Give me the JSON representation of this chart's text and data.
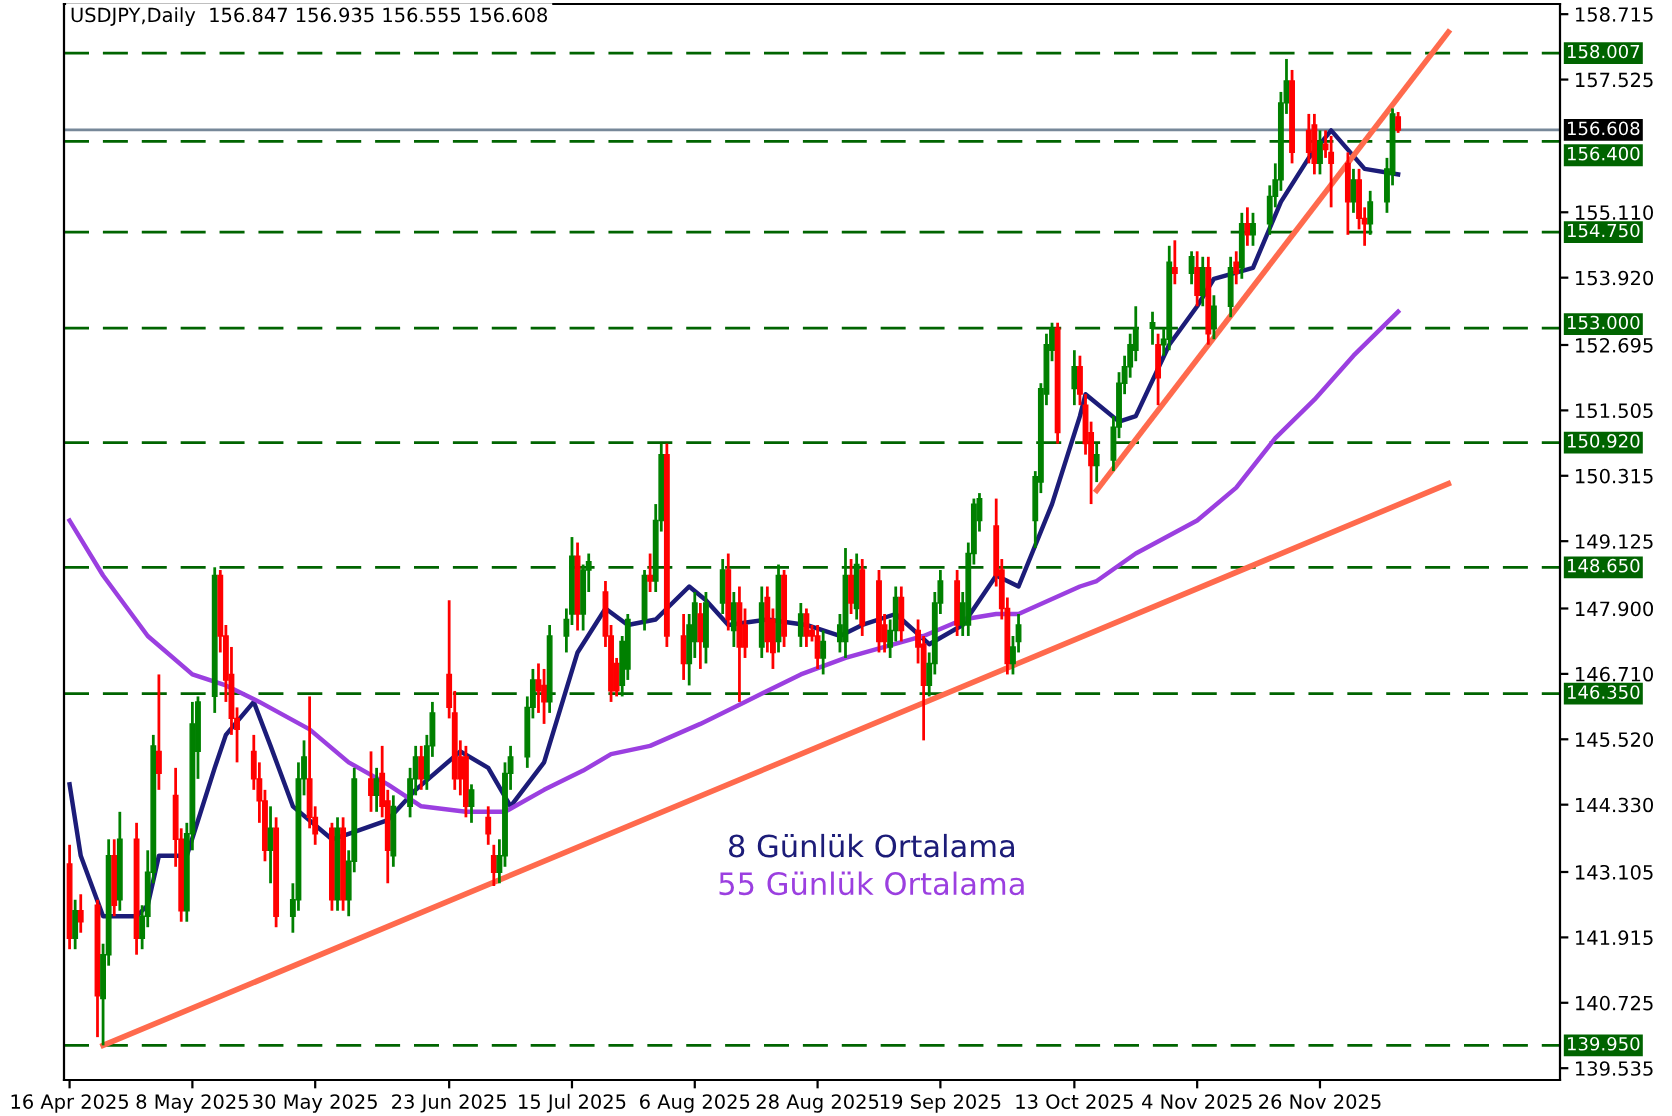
{
  "chart_data": {
    "type": "candlestick",
    "title": "USDJPY,Daily  156.847 156.935 156.555 156.608",
    "x": [
      "2025-04-16",
      "2025-04-17",
      "2025-04-18",
      "2025-04-21",
      "2025-04-22",
      "2025-04-23",
      "2025-04-24",
      "2025-04-25",
      "2025-04-28",
      "2025-04-29",
      "2025-04-30",
      "2025-05-01",
      "2025-05-02",
      "2025-05-05",
      "2025-05-06",
      "2025-05-07",
      "2025-05-08",
      "2025-05-09",
      "2025-05-12",
      "2025-05-13",
      "2025-05-14",
      "2025-05-15",
      "2025-05-16",
      "2025-05-19",
      "2025-05-20",
      "2025-05-21",
      "2025-05-22",
      "2025-05-23",
      "2025-05-26",
      "2025-05-27",
      "2025-05-28",
      "2025-05-29",
      "2025-05-30",
      "2025-06-02",
      "2025-06-03",
      "2025-06-04",
      "2025-06-05",
      "2025-06-06",
      "2025-06-09",
      "2025-06-10",
      "2025-06-11",
      "2025-06-12",
      "2025-06-13",
      "2025-06-16",
      "2025-06-17",
      "2025-06-18",
      "2025-06-19",
      "2025-06-20",
      "2025-06-23",
      "2025-06-24",
      "2025-06-25",
      "2025-06-26",
      "2025-06-27",
      "2025-06-30",
      "2025-07-01",
      "2025-07-02",
      "2025-07-03",
      "2025-07-04",
      "2025-07-07",
      "2025-07-08",
      "2025-07-09",
      "2025-07-10",
      "2025-07-11",
      "2025-07-14",
      "2025-07-15",
      "2025-07-16",
      "2025-07-17",
      "2025-07-18",
      "2025-07-21",
      "2025-07-22",
      "2025-07-23",
      "2025-07-24",
      "2025-07-25",
      "2025-07-28",
      "2025-07-29",
      "2025-07-30",
      "2025-07-31",
      "2025-08-01",
      "2025-08-04",
      "2025-08-05",
      "2025-08-06",
      "2025-08-07",
      "2025-08-08",
      "2025-08-11",
      "2025-08-12",
      "2025-08-13",
      "2025-08-14",
      "2025-08-15",
      "2025-08-18",
      "2025-08-19",
      "2025-08-20",
      "2025-08-21",
      "2025-08-22",
      "2025-08-25",
      "2025-08-26",
      "2025-08-27",
      "2025-08-28",
      "2025-08-29",
      "2025-09-01",
      "2025-09-02",
      "2025-09-03",
      "2025-09-04",
      "2025-09-05",
      "2025-09-08",
      "2025-09-09",
      "2025-09-10",
      "2025-09-11",
      "2025-09-12",
      "2025-09-15",
      "2025-09-16",
      "2025-09-17",
      "2025-09-18",
      "2025-09-19",
      "2025-09-22",
      "2025-09-23",
      "2025-09-24",
      "2025-09-25",
      "2025-09-26",
      "2025-09-29",
      "2025-09-30",
      "2025-10-01",
      "2025-10-02",
      "2025-10-03",
      "2025-10-06",
      "2025-10-07",
      "2025-10-08",
      "2025-10-09",
      "2025-10-10",
      "2025-10-13",
      "2025-10-14",
      "2025-10-15",
      "2025-10-16",
      "2025-10-17",
      "2025-10-20",
      "2025-10-21",
      "2025-10-22",
      "2025-10-23",
      "2025-10-24",
      "2025-10-27",
      "2025-10-28",
      "2025-10-29",
      "2025-10-30",
      "2025-10-31",
      "2025-11-03",
      "2025-11-04",
      "2025-11-05",
      "2025-11-06",
      "2025-11-07",
      "2025-11-10",
      "2025-11-11",
      "2025-11-12",
      "2025-11-13",
      "2025-11-14",
      "2025-11-17",
      "2025-11-18",
      "2025-11-19",
      "2025-11-20",
      "2025-11-21",
      "2025-11-24",
      "2025-11-25",
      "2025-11-26",
      "2025-11-27",
      "2025-11-28",
      "2025-12-01",
      "2025-12-02",
      "2025-12-03",
      "2025-12-04",
      "2025-12-05",
      "2025-12-08",
      "2025-12-09",
      "2025-12-10"
    ],
    "ohlc": [
      [
        143.25,
        143.6,
        141.7,
        141.9
      ],
      [
        141.9,
        142.6,
        141.7,
        142.4
      ],
      [
        142.4,
        142.7,
        142.0,
        142.2
      ],
      [
        142.5,
        142.6,
        140.1,
        140.85
      ],
      [
        140.8,
        141.8,
        139.95,
        141.6
      ],
      [
        141.6,
        143.7,
        141.4,
        143.4
      ],
      [
        143.4,
        143.7,
        142.3,
        142.5
      ],
      [
        142.6,
        144.2,
        142.4,
        143.7
      ],
      [
        143.7,
        144.0,
        141.6,
        141.9
      ],
      [
        141.9,
        142.5,
        141.7,
        142.3
      ],
      [
        142.3,
        143.5,
        142.1,
        143.1
      ],
      [
        143.1,
        145.6,
        142.9,
        145.4
      ],
      [
        145.3,
        146.7,
        144.6,
        144.9
      ],
      [
        144.5,
        145.0,
        143.2,
        143.7
      ],
      [
        143.7,
        143.9,
        142.2,
        142.4
      ],
      [
        142.4,
        144.0,
        142.2,
        143.8
      ],
      [
        143.8,
        146.2,
        143.5,
        145.8
      ],
      [
        145.3,
        146.3,
        144.8,
        146.2
      ],
      [
        146.3,
        148.65,
        146.0,
        148.5
      ],
      [
        148.5,
        148.6,
        147.1,
        147.4
      ],
      [
        147.4,
        147.6,
        146.2,
        146.6
      ],
      [
        146.7,
        147.2,
        145.6,
        145.9
      ],
      [
        145.9,
        146.1,
        145.1,
        145.7
      ],
      [
        145.3,
        145.6,
        144.6,
        144.8
      ],
      [
        144.8,
        145.1,
        144.0,
        144.4
      ],
      [
        144.4,
        144.6,
        143.3,
        143.5
      ],
      [
        143.5,
        144.3,
        142.9,
        143.9
      ],
      [
        143.9,
        144.1,
        142.1,
        142.3
      ],
      [
        142.3,
        142.9,
        142.0,
        142.6
      ],
      [
        142.6,
        145.1,
        142.4,
        144.8
      ],
      [
        144.8,
        145.5,
        144.5,
        145.2
      ],
      [
        144.8,
        146.3,
        143.9,
        144.1
      ],
      [
        144.1,
        144.3,
        143.6,
        143.8
      ],
      [
        143.9,
        144.0,
        142.4,
        142.6
      ],
      [
        142.6,
        144.1,
        142.4,
        143.9
      ],
      [
        143.9,
        144.1,
        142.4,
        142.6
      ],
      [
        142.6,
        143.5,
        142.3,
        143.3
      ],
      [
        143.3,
        145.0,
        143.1,
        144.8
      ],
      [
        144.8,
        145.3,
        144.2,
        144.5
      ],
      [
        144.5,
        145.0,
        144.2,
        144.8
      ],
      [
        144.9,
        145.4,
        144.1,
        144.3
      ],
      [
        144.4,
        144.6,
        142.9,
        143.5
      ],
      [
        143.4,
        144.5,
        143.2,
        144.3
      ],
      [
        144.3,
        145.0,
        144.1,
        144.8
      ],
      [
        144.8,
        145.4,
        144.5,
        145.2
      ],
      [
        145.2,
        145.4,
        144.6,
        144.8
      ],
      [
        144.8,
        145.6,
        144.6,
        145.4
      ],
      [
        145.4,
        146.2,
        145.2,
        146.0
      ],
      [
        146.7,
        148.05,
        145.9,
        146.1
      ],
      [
        146.0,
        146.4,
        144.6,
        144.8
      ],
      [
        145.2,
        145.5,
        144.5,
        144.8
      ],
      [
        145.2,
        145.4,
        144.1,
        144.3
      ],
      [
        144.3,
        144.7,
        144.0,
        144.6
      ],
      [
        144.1,
        144.3,
        143.6,
        143.8
      ],
      [
        143.4,
        143.6,
        142.85,
        143.1
      ],
      [
        143.1,
        143.7,
        142.9,
        143.4
      ],
      [
        143.4,
        145.1,
        143.2,
        144.9
      ],
      [
        144.9,
        145.4,
        144.6,
        145.2
      ],
      [
        145.2,
        146.3,
        145.0,
        146.1
      ],
      [
        146.1,
        146.8,
        145.9,
        146.6
      ],
      [
        146.6,
        146.9,
        146.0,
        146.4
      ],
      [
        146.5,
        146.8,
        145.8,
        146.2
      ],
      [
        146.2,
        147.6,
        146.0,
        147.4
      ],
      [
        147.4,
        147.9,
        147.1,
        147.7
      ],
      [
        147.8,
        149.2,
        147.6,
        148.85
      ],
      [
        148.85,
        149.1,
        147.5,
        147.8
      ],
      [
        147.8,
        148.7,
        147.5,
        148.6
      ],
      [
        148.6,
        148.9,
        148.2,
        148.75
      ],
      [
        148.2,
        148.4,
        147.2,
        147.4
      ],
      [
        147.4,
        147.6,
        146.2,
        146.4
      ],
      [
        146.9,
        147.0,
        146.3,
        146.4
      ],
      [
        146.5,
        147.4,
        146.3,
        147.3
      ],
      [
        146.8,
        147.8,
        146.6,
        147.7
      ],
      [
        147.7,
        148.6,
        147.5,
        148.5
      ],
      [
        148.5,
        148.9,
        148.2,
        148.4
      ],
      [
        148.4,
        149.8,
        148.2,
        149.5
      ],
      [
        149.5,
        150.9,
        149.3,
        150.7
      ],
      [
        150.7,
        150.9,
        147.2,
        147.4
      ],
      [
        147.4,
        147.8,
        146.6,
        146.9
      ],
      [
        146.9,
        147.8,
        146.5,
        147.6
      ],
      [
        147.3,
        148.2,
        147.0,
        148.0
      ],
      [
        147.8,
        148.0,
        146.8,
        147.3
      ],
      [
        147.2,
        148.2,
        146.9,
        148.0
      ],
      [
        148.0,
        148.8,
        147.8,
        148.6
      ],
      [
        148.6,
        148.9,
        147.5,
        147.7
      ],
      [
        147.5,
        148.2,
        147.2,
        148.0
      ],
      [
        148.0,
        148.3,
        146.2,
        147.2
      ],
      [
        147.6,
        147.9,
        147.0,
        147.2
      ],
      [
        147.2,
        148.3,
        147.0,
        148.0
      ],
      [
        148.1,
        148.3,
        147.1,
        147.3
      ],
      [
        147.7,
        147.9,
        146.8,
        147.1
      ],
      [
        147.3,
        148.7,
        147.1,
        148.5
      ],
      [
        148.5,
        148.6,
        147.2,
        147.4
      ],
      [
        147.4,
        148.0,
        147.2,
        147.8
      ],
      [
        147.8,
        147.9,
        147.2,
        147.4
      ],
      [
        147.5,
        147.6,
        147.3,
        147.4
      ],
      [
        147.4,
        147.6,
        146.8,
        147.0
      ],
      [
        147.0,
        147.5,
        146.7,
        147.3
      ],
      [
        147.3,
        147.8,
        147.1,
        147.6
      ],
      [
        147.3,
        149.0,
        147.0,
        148.5
      ],
      [
        148.5,
        148.8,
        147.8,
        148.0
      ],
      [
        147.9,
        148.9,
        147.7,
        148.7
      ],
      [
        148.6,
        148.8,
        147.4,
        147.6
      ],
      [
        148.4,
        148.6,
        147.1,
        147.3
      ],
      [
        147.6,
        147.8,
        147.1,
        147.3
      ],
      [
        147.2,
        147.7,
        147.0,
        147.5
      ],
      [
        147.5,
        148.3,
        147.3,
        148.1
      ],
      [
        148.1,
        148.3,
        147.3,
        147.5
      ],
      [
        147.5,
        147.7,
        146.9,
        147.2
      ],
      [
        147.25,
        147.4,
        145.5,
        146.5
      ],
      [
        146.5,
        147.1,
        146.3,
        146.9
      ],
      [
        146.9,
        148.2,
        146.7,
        148.0
      ],
      [
        148.0,
        148.6,
        147.8,
        148.4
      ],
      [
        148.4,
        148.6,
        147.4,
        147.6
      ],
      [
        147.6,
        148.2,
        147.4,
        148.0
      ],
      [
        147.6,
        149.1,
        147.4,
        148.9
      ],
      [
        148.9,
        149.9,
        148.7,
        149.8
      ],
      [
        149.5,
        150.0,
        149.3,
        149.9
      ],
      [
        149.4,
        149.9,
        148.3,
        148.5
      ],
      [
        148.6,
        148.8,
        147.7,
        147.9
      ],
      [
        147.9,
        148.1,
        146.7,
        146.9
      ],
      [
        146.9,
        147.4,
        146.7,
        147.2
      ],
      [
        147.3,
        147.8,
        147.1,
        147.6
      ],
      [
        149.5,
        150.4,
        149.0,
        150.3
      ],
      [
        150.2,
        152.0,
        150.0,
        151.9
      ],
      [
        151.8,
        152.9,
        151.6,
        152.7
      ],
      [
        152.6,
        153.1,
        152.4,
        153.0
      ],
      [
        153.0,
        153.1,
        150.9,
        151.1
      ],
      [
        151.9,
        152.6,
        151.6,
        152.3
      ],
      [
        152.3,
        152.5,
        151.6,
        151.8
      ],
      [
        151.6,
        151.8,
        150.7,
        150.9
      ],
      [
        151.1,
        151.3,
        149.8,
        150.5
      ],
      [
        150.5,
        150.9,
        150.2,
        150.7
      ],
      [
        150.6,
        151.4,
        150.4,
        151.2
      ],
      [
        151.2,
        152.2,
        151.0,
        152.0
      ],
      [
        152.0,
        152.5,
        151.8,
        152.3
      ],
      [
        152.3,
        152.9,
        152.1,
        152.7
      ],
      [
        152.6,
        153.4,
        152.4,
        153.0
      ],
      [
        153.0,
        153.3,
        152.7,
        153.1
      ],
      [
        152.7,
        152.9,
        151.6,
        152.1
      ],
      [
        152.7,
        153.0,
        152.5,
        152.8
      ],
      [
        152.8,
        154.5,
        152.6,
        154.2
      ],
      [
        154.1,
        154.6,
        153.8,
        154.0
      ],
      [
        154.0,
        154.4,
        153.8,
        154.3
      ],
      [
        154.1,
        154.4,
        153.4,
        153.6
      ],
      [
        153.6,
        154.3,
        153.4,
        154.1
      ],
      [
        154.1,
        154.3,
        152.7,
        152.9
      ],
      [
        153.0,
        153.6,
        152.8,
        153.4
      ],
      [
        153.4,
        154.3,
        153.2,
        154.1
      ],
      [
        154.2,
        154.4,
        153.8,
        154.0
      ],
      [
        154.1,
        155.1,
        153.9,
        154.9
      ],
      [
        154.9,
        155.2,
        154.5,
        154.7
      ],
      [
        154.7,
        155.1,
        154.5,
        154.9
      ],
      [
        154.9,
        155.6,
        154.7,
        155.4
      ],
      [
        155.4,
        156.0,
        155.2,
        155.7
      ],
      [
        155.7,
        157.3,
        155.5,
        157.1
      ],
      [
        157.1,
        157.9,
        156.9,
        157.5
      ],
      [
        157.5,
        157.7,
        156.0,
        156.2
      ],
      [
        156.6,
        156.9,
        156.0,
        156.2
      ],
      [
        156.7,
        156.9,
        155.8,
        156.0
      ],
      [
        156.0,
        156.6,
        155.8,
        156.4
      ],
      [
        156.35,
        156.6,
        156.1,
        156.25
      ],
      [
        156.2,
        156.5,
        155.2,
        156.0
      ],
      [
        156.0,
        156.2,
        154.7,
        155.3
      ],
      [
        155.3,
        155.9,
        155.1,
        155.7
      ],
      [
        155.7,
        155.9,
        154.8,
        155.0
      ],
      [
        155.0,
        155.2,
        154.5,
        154.9
      ],
      [
        154.9,
        155.5,
        154.7,
        155.3
      ],
      [
        155.3,
        156.1,
        155.1,
        155.9
      ],
      [
        155.8,
        157.0,
        155.6,
        156.9
      ],
      [
        156.847,
        156.935,
        156.555,
        156.608
      ]
    ],
    "series": [
      {
        "name": "8 Günlük Ortalama",
        "type": "line",
        "color": "#1c1c78",
        "x": [
          "2025-04-16",
          "2025-04-18",
          "2025-04-22",
          "2025-04-28",
          "2025-04-30",
          "2025-05-02",
          "2025-05-07",
          "2025-05-12",
          "2025-05-14",
          "2025-05-19",
          "2025-05-22",
          "2025-05-26",
          "2025-06-02",
          "2025-06-05",
          "2025-06-12",
          "2025-06-17",
          "2025-06-25",
          "2025-06-30",
          "2025-07-04",
          "2025-07-10",
          "2025-07-16",
          "2025-07-21",
          "2025-07-25",
          "2025-07-30",
          "2025-08-05",
          "2025-08-08",
          "2025-08-12",
          "2025-08-19",
          "2025-08-26",
          "2025-09-01",
          "2025-09-05",
          "2025-09-11",
          "2025-09-17",
          "2025-09-23",
          "2025-09-29",
          "2025-10-03",
          "2025-10-09",
          "2025-10-14",
          "2025-10-15",
          "2025-10-21",
          "2025-10-24",
          "2025-10-30",
          "2025-11-04",
          "2025-11-07",
          "2025-11-14",
          "2025-11-19",
          "2025-11-24",
          "2025-11-28",
          "2025-12-04",
          "2025-12-10"
        ],
        "values": [
          144.7,
          143.4,
          142.3,
          142.3,
          142.5,
          143.4,
          143.4,
          145.0,
          145.6,
          146.2,
          145.4,
          144.3,
          143.7,
          143.8,
          144.05,
          144.6,
          145.3,
          145.0,
          144.3,
          145.1,
          147.1,
          147.9,
          147.6,
          147.7,
          148.3,
          148.05,
          147.6,
          147.7,
          147.6,
          147.4,
          147.6,
          147.8,
          147.25,
          147.6,
          148.5,
          148.3,
          149.8,
          151.4,
          151.8,
          151.3,
          151.4,
          152.7,
          153.4,
          153.9,
          154.1,
          155.3,
          156.1,
          156.6,
          155.9,
          155.8
        ]
      },
      {
        "name": "55 Günlük Ortalama",
        "type": "line",
        "color": "#9b3fe0",
        "x": [
          "2025-04-16",
          "2025-04-22",
          "2025-04-30",
          "2025-05-08",
          "2025-05-14",
          "2025-05-20",
          "2025-05-29",
          "2025-06-05",
          "2025-06-12",
          "2025-06-18",
          "2025-06-26",
          "2025-07-03",
          "2025-07-10",
          "2025-07-17",
          "2025-07-22",
          "2025-07-29",
          "2025-08-07",
          "2025-08-15",
          "2025-08-25",
          "2025-09-02",
          "2025-09-09",
          "2025-09-16",
          "2025-09-23",
          "2025-09-29",
          "2025-10-03",
          "2025-10-14",
          "2025-10-17",
          "2025-10-24",
          "2025-11-04",
          "2025-11-11",
          "2025-11-18",
          "2025-11-25",
          "2025-12-02",
          "2025-12-10"
        ],
        "values": [
          149.5,
          148.5,
          147.4,
          146.7,
          146.5,
          146.2,
          145.7,
          145.1,
          144.7,
          144.3,
          144.2,
          144.2,
          144.6,
          144.95,
          145.25,
          145.4,
          145.8,
          146.2,
          146.7,
          147.0,
          147.2,
          147.4,
          147.7,
          147.8,
          147.8,
          148.3,
          148.4,
          148.9,
          149.5,
          150.1,
          151.0,
          151.7,
          152.5,
          153.3
        ]
      },
      {
        "type": "line",
        "color": "#ff6a4d",
        "x": [
          "2025-04-22",
          "2025-12-19"
        ],
        "values": [
          139.95,
          150.17
        ]
      },
      {
        "type": "line",
        "color": "#ff6a4d",
        "x": [
          "2025-10-17",
          "2025-12-19"
        ],
        "values": [
          150.05,
          158.39
        ]
      }
    ],
    "xlim": [
      "2025-04-15",
      "2026-01-08"
    ],
    "xticks": [
      {
        "value": "2025-04-16",
        "label": "16 Apr 2025"
      },
      {
        "value": "2025-05-08",
        "label": "8 May 2025"
      },
      {
        "value": "2025-05-30",
        "label": "30 May 2025"
      },
      {
        "value": "2025-06-23",
        "label": "23 Jun 2025"
      },
      {
        "value": "2025-07-15",
        "label": "15 Jul 2025"
      },
      {
        "value": "2025-08-06",
        "label": "6 Aug 2025"
      },
      {
        "value": "2025-08-28",
        "label": "28 Aug 2025"
      },
      {
        "value": "2025-09-19",
        "label": "19 Sep 2025"
      },
      {
        "value": "2025-10-13",
        "label": "13 Oct 2025"
      },
      {
        "value": "2025-11-04",
        "label": "4 Nov 2025"
      },
      {
        "value": "2025-11-26",
        "label": "26 Nov 2025"
      }
    ],
    "ylim": [
      139.32,
      158.9
    ],
    "yticks": [
      {
        "value": 158.715,
        "label": "158.715"
      },
      {
        "value": 157.525,
        "label": "157.525"
      },
      {
        "value": 155.11,
        "label": "155.110"
      },
      {
        "value": 153.92,
        "label": "153.920"
      },
      {
        "value": 152.695,
        "label": "152.695"
      },
      {
        "value": 151.505,
        "label": "151.505"
      },
      {
        "value": 150.315,
        "label": "150.315"
      },
      {
        "value": 149.125,
        "label": "149.125"
      },
      {
        "value": 147.9,
        "label": "147.900"
      },
      {
        "value": 146.71,
        "label": "146.710"
      },
      {
        "value": 145.52,
        "label": "145.520"
      },
      {
        "value": 144.33,
        "label": "144.330"
      },
      {
        "value": 143.105,
        "label": "143.105"
      },
      {
        "value": 141.915,
        "label": "141.915"
      },
      {
        "value": 140.725,
        "label": "140.725"
      },
      {
        "value": 139.535,
        "label": "139.535"
      }
    ],
    "ref_lines": [
      {
        "axis": "y",
        "value": 158.007,
        "label": "158.007",
        "color": "#006400",
        "line_style": "dashed"
      },
      {
        "axis": "y",
        "value": 156.4,
        "label": "156.400",
        "color": "#006400",
        "line_style": "dashed"
      },
      {
        "axis": "y",
        "value": 154.75,
        "label": "154.750",
        "color": "#006400",
        "line_style": "dashed"
      },
      {
        "axis": "y",
        "value": 153.0,
        "label": "153.000",
        "color": "#006400",
        "line_style": "dashed"
      },
      {
        "axis": "y",
        "value": 150.92,
        "label": "150.920",
        "color": "#006400",
        "line_style": "dashed"
      },
      {
        "axis": "y",
        "value": 148.65,
        "label": "148.650",
        "color": "#006400",
        "line_style": "dashed"
      },
      {
        "axis": "y",
        "value": 146.35,
        "label": "146.350",
        "color": "#006400",
        "line_style": "dashed"
      },
      {
        "axis": "y",
        "value": 139.95,
        "label": "139.950",
        "color": "#006400",
        "line_style": "dashed"
      },
      {
        "axis": "y",
        "value": 156.608,
        "label": "156.608",
        "color": "#778899",
        "line_style": "solid"
      }
    ],
    "grid": false,
    "legend": false
  }
}
